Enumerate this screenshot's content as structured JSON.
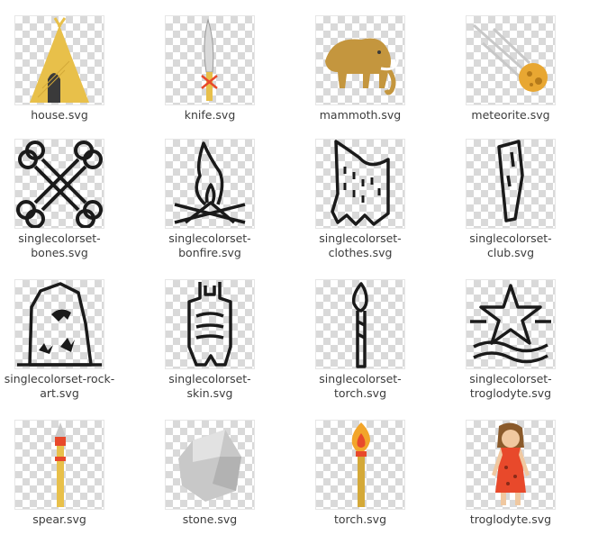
{
  "files": [
    {
      "name": "house.svg",
      "icon": "hut-icon"
    },
    {
      "name": "knife.svg",
      "icon": "knife-icon"
    },
    {
      "name": "mammoth.svg",
      "icon": "mammoth-icon"
    },
    {
      "name": "meteorite.svg",
      "icon": "meteorite-icon"
    },
    {
      "name": "singlecolorset-\nbones.svg",
      "icon": "bones-icon"
    },
    {
      "name": "singlecolorset-\nbonfire.svg",
      "icon": "bonfire-icon"
    },
    {
      "name": "singlecolorset-\nclothes.svg",
      "icon": "clothes-icon"
    },
    {
      "name": "singlecolorset-\nclub.svg",
      "icon": "club-icon"
    },
    {
      "name": "singlecolorset-rock-\nart.svg",
      "icon": "rock-art-icon"
    },
    {
      "name": "singlecolorset-\nskin.svg",
      "icon": "skin-icon"
    },
    {
      "name": "singlecolorset-\ntorch.svg",
      "icon": "torch-outline-icon"
    },
    {
      "name": "singlecolorset-\ntroglodyte.svg",
      "icon": "star-waves-icon"
    },
    {
      "name": "spear.svg",
      "icon": "spear-icon"
    },
    {
      "name": "stone.svg",
      "icon": "stone-icon"
    },
    {
      "name": "torch.svg",
      "icon": "torch-icon"
    },
    {
      "name": "troglodyte.svg",
      "icon": "troglodyte-icon"
    }
  ],
  "colors": {
    "thatch": "#e8c04a",
    "door": "#3a3a3a",
    "mammoth": "#c4963e",
    "ink": "#1a1a1a",
    "red": "#e8492b",
    "flame": "#f2a52a",
    "stone": "#c8c8c8"
  }
}
